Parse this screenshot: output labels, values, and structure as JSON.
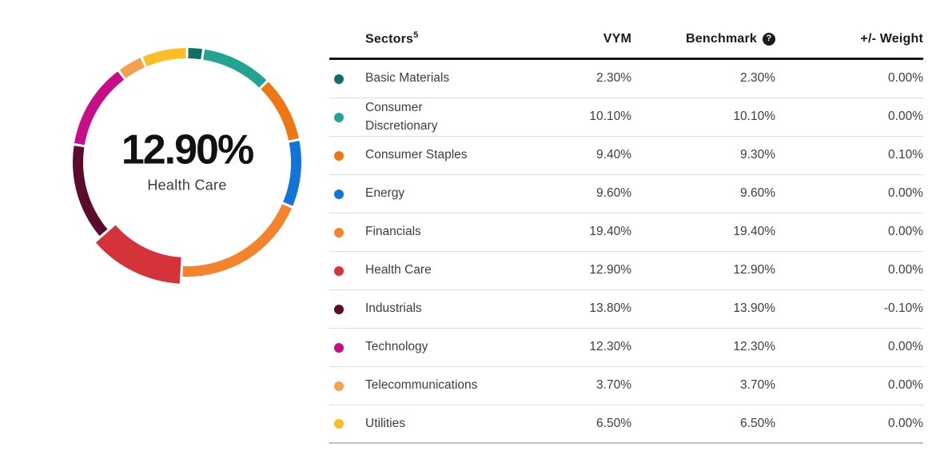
{
  "donut": {
    "center_value": "12.90%",
    "center_label": "Health Care"
  },
  "chart_data": {
    "type": "pie",
    "title": "Fund sector weights donut",
    "unit": "%",
    "highlighted_segment": "Health Care",
    "start_angle_deg": -90,
    "direction": "clockwise",
    "segments": [
      {
        "label": "Basic Materials",
        "value": 2.3,
        "color": "#0e6f62"
      },
      {
        "label": "Consumer Discretionary",
        "value": 10.1,
        "color": "#23a493"
      },
      {
        "label": "Consumer Staples",
        "value": 9.4,
        "color": "#ee7613"
      },
      {
        "label": "Energy",
        "value": 9.6,
        "color": "#1374d8"
      },
      {
        "label": "Financials",
        "value": 19.4,
        "color": "#f5822d"
      },
      {
        "label": "Health Care",
        "value": 12.9,
        "color": "#d4333a"
      },
      {
        "label": "Industrials",
        "value": 13.8,
        "color": "#5b0c2d"
      },
      {
        "label": "Technology",
        "value": 12.3,
        "color": "#c70d87"
      },
      {
        "label": "Telecommunications",
        "value": 3.7,
        "color": "#f5a04c"
      },
      {
        "label": "Utilities",
        "value": 6.5,
        "color": "#fcbd25"
      }
    ]
  },
  "table": {
    "headers": {
      "sectors": "Sectors",
      "sectors_sup": "5",
      "vym": "VYM",
      "benchmark": "Benchmark",
      "help_icon": "?",
      "weight": "+/- Weight"
    },
    "rows": [
      {
        "sector": "Basic Materials",
        "vym": "2.30%",
        "benchmark": "2.30%",
        "weight": "0.00%",
        "color": "#0e6f62"
      },
      {
        "sector": "Consumer Discretionary",
        "vym": "10.10%",
        "benchmark": "10.10%",
        "weight": "0.00%",
        "color": "#23a493"
      },
      {
        "sector": "Consumer Staples",
        "vym": "9.40%",
        "benchmark": "9.30%",
        "weight": "0.10%",
        "color": "#ee7613"
      },
      {
        "sector": "Energy",
        "vym": "9.60%",
        "benchmark": "9.60%",
        "weight": "0.00%",
        "color": "#1374d8"
      },
      {
        "sector": "Financials",
        "vym": "19.40%",
        "benchmark": "19.40%",
        "weight": "0.00%",
        "color": "#f5822d"
      },
      {
        "sector": "Health Care",
        "vym": "12.90%",
        "benchmark": "12.90%",
        "weight": "0.00%",
        "color": "#d4333a"
      },
      {
        "sector": "Industrials",
        "vym": "13.80%",
        "benchmark": "13.90%",
        "weight": "-0.10%",
        "color": "#5b0c2d"
      },
      {
        "sector": "Technology",
        "vym": "12.30%",
        "benchmark": "12.30%",
        "weight": "0.00%",
        "color": "#c70d87"
      },
      {
        "sector": "Telecommunications",
        "vym": "3.70%",
        "benchmark": "3.70%",
        "weight": "0.00%",
        "color": "#f5a04c"
      },
      {
        "sector": "Utilities",
        "vym": "6.50%",
        "benchmark": "6.50%",
        "weight": "0.00%",
        "color": "#fcbd25"
      }
    ]
  }
}
